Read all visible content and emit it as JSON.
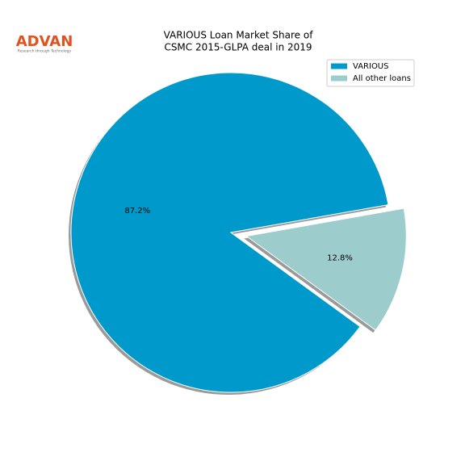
{
  "logo": {
    "name": "ADVAN",
    "tagline": "Research through Technology"
  },
  "chart_data": {
    "type": "pie",
    "title": [
      "VARIOUS Loan Market Share of",
      "CSMC 2015-GLPA deal in 2019"
    ],
    "categories": [
      "VARIOUS",
      "All other loans"
    ],
    "values": [
      87.2,
      12.8
    ],
    "value_labels": [
      "87.2%",
      "12.8%"
    ],
    "colors": [
      "#0099cc",
      "#9ccccc"
    ],
    "legend": "upper right"
  }
}
